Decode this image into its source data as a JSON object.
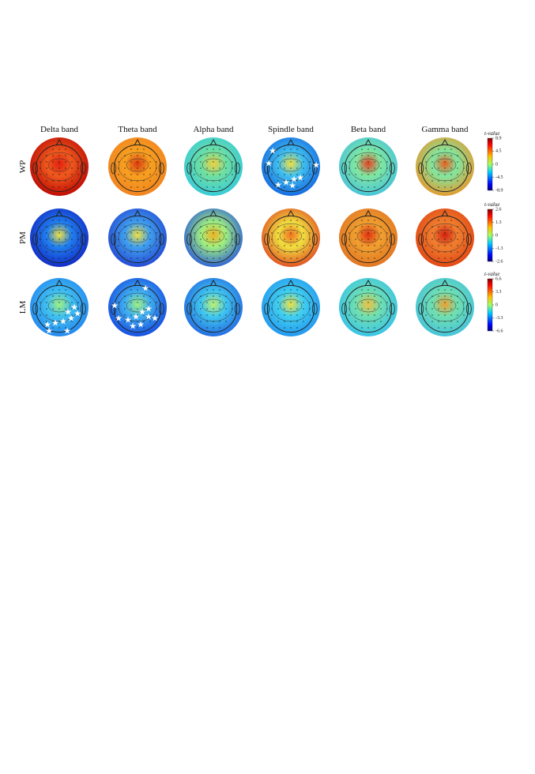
{
  "columns": [
    "Delta band",
    "Theta band",
    "Alpha band",
    "Spindle band",
    "Beta band",
    "Gamma band"
  ],
  "rows": [
    {
      "label": "WP",
      "colorbar": {
        "title": "t-value",
        "ticks": [
          8.9,
          4.5,
          0,
          -4.5,
          -8.9
        ]
      }
    },
    {
      "label": "PM",
      "colorbar": {
        "title": "t-value",
        "ticks": [
          2.6,
          1.3,
          0,
          -1.3,
          -2.6
        ]
      }
    },
    {
      "label": "LM",
      "colorbar": {
        "title": "t-value",
        "ticks": [
          6.6,
          3.3,
          0,
          -3.3,
          -6.6
        ]
      }
    }
  ]
}
